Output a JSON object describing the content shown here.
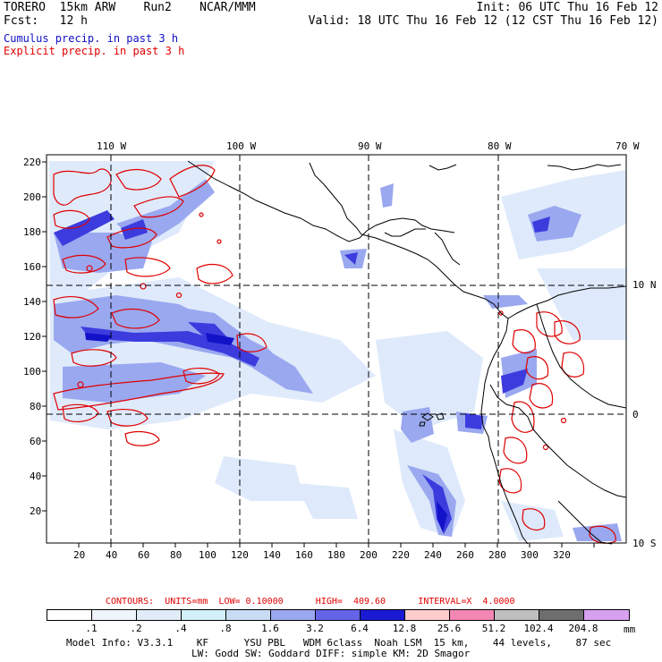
{
  "header": {
    "line1_left": "TORERO  15km ARW    Run2    NCAR/MMM",
    "line1_right": "Init: 06 UTC Thu 16 Feb 12",
    "line2_left": "Fcst:   12 h",
    "line2_right": "Valid: 18 UTC Thu 16 Feb 12 (12 CST Thu 16 Feb 12)",
    "cumulus_label": "Cumulus precip. in past 3 h",
    "explicit_label": "Explicit precip. in past 3 h"
  },
  "map": {
    "top_lon_labels": [
      "110 W",
      "100 W",
      "90 W",
      "80 W",
      "70 W"
    ],
    "right_lat_labels": [
      "10 N",
      "0",
      "10 S"
    ],
    "y_ticks": [
      "220",
      "200",
      "180",
      "160",
      "140",
      "120",
      "100",
      "80",
      "60",
      "40",
      "20"
    ],
    "x_ticks": [
      "20",
      "40",
      "60",
      "80",
      "100",
      "120",
      "140",
      "160",
      "180",
      "200",
      "220",
      "240",
      "260",
      "280",
      "300",
      "320"
    ],
    "colors": {
      "coast": "#000000",
      "grid": "#000000",
      "cumulus_light": "#dbe8fb",
      "cumulus_mid": "#9aa8f0",
      "cumulus_dark": "#3c3cde",
      "cumulus_darkest": "#1212c8",
      "explicit": "#e00000"
    }
  },
  "legend": {
    "contours_text": "CONTOURS:  UNITS=mm  LOW= 0.10000      HIGH=  409.60      INTERVAL=X  4.0000",
    "labels": [
      ".1",
      ".2",
      ".4",
      ".8",
      "1.6",
      "3.2",
      "6.4",
      "12.8",
      "25.6",
      "51.2",
      "102.4",
      "204.8"
    ],
    "unit": "mm",
    "colors": [
      "#ffffff",
      "#f0f4fc",
      "#e0ecf8",
      "#d2f0f8",
      "#c8dcf4",
      "#9aa8f0",
      "#6464e8",
      "#1a1ad2",
      "#fccccc",
      "#f486b4",
      "#bebebe",
      "#6e6e6e",
      "#d8a0f0"
    ]
  },
  "footer": {
    "line1": "Model Info: V3.3.1    KF      YSU PBL   WDM 6class  Noah LSM  15 km,    44 levels,    87 sec",
    "line2": "LW: Godd SW: Goddard DIFF: simple KM: 2D Smagor"
  }
}
